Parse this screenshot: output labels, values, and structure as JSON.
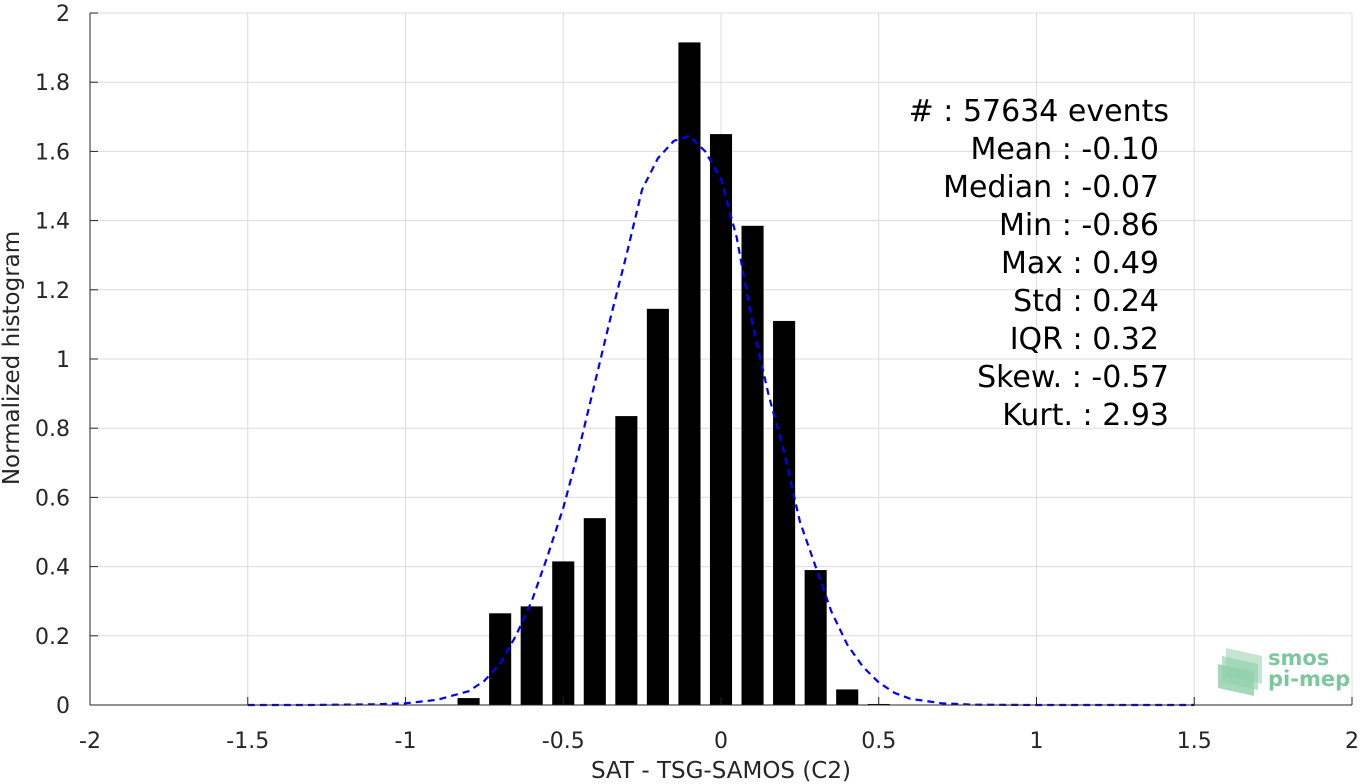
{
  "chart_data": {
    "type": "bar",
    "xlabel": "SAT - TSG-SAMOS (C2)",
    "ylabel": "Normalized histogram",
    "xlim": [
      -2,
      2
    ],
    "ylim": [
      0,
      2
    ],
    "x_ticks": [
      -2,
      -1.5,
      -1,
      -0.5,
      0,
      0.5,
      1,
      1.5,
      2
    ],
    "x_tick_labels": [
      "-2",
      "-1.5",
      "-1",
      "-0.5",
      "0",
      "0.5",
      "1",
      "1.5",
      "2"
    ],
    "y_ticks": [
      0,
      0.2,
      0.4,
      0.6,
      0.8,
      1,
      1.2,
      1.4,
      1.6,
      1.8,
      2
    ],
    "y_tick_labels": [
      "0",
      "0.2",
      "0.4",
      "0.6",
      "0.8",
      "1",
      "1.2",
      "1.4",
      "1.6",
      "1.8",
      "2"
    ],
    "grid": true,
    "bar_color": "#000000",
    "bar_width": 0.07,
    "bars": {
      "x": [
        -0.8,
        -0.7,
        -0.6,
        -0.5,
        -0.4,
        -0.3,
        -0.2,
        -0.1,
        0.0,
        0.1,
        0.2,
        0.3,
        0.4,
        0.5
      ],
      "values": [
        0.02,
        0.265,
        0.285,
        0.415,
        0.54,
        0.835,
        1.145,
        1.915,
        1.65,
        1.385,
        1.11,
        0.39,
        0.045,
        0.003
      ]
    },
    "fit_curve": {
      "style": "dashed",
      "color": "#0000ff",
      "x": [
        -1.5,
        -1.3,
        -1.1,
        -1.0,
        -0.9,
        -0.8,
        -0.75,
        -0.7,
        -0.65,
        -0.6,
        -0.55,
        -0.5,
        -0.45,
        -0.4,
        -0.35,
        -0.3,
        -0.25,
        -0.2,
        -0.15,
        -0.1,
        -0.05,
        0.0,
        0.05,
        0.1,
        0.15,
        0.2,
        0.25,
        0.3,
        0.35,
        0.4,
        0.45,
        0.5,
        0.55,
        0.6,
        0.7,
        0.8,
        1.0,
        1.5
      ],
      "y": [
        0.0,
        0.0,
        0.002,
        0.005,
        0.015,
        0.04,
        0.07,
        0.12,
        0.2,
        0.3,
        0.43,
        0.57,
        0.74,
        0.93,
        1.12,
        1.3,
        1.49,
        1.58,
        1.63,
        1.645,
        1.6,
        1.52,
        1.35,
        1.1,
        0.9,
        0.73,
        0.53,
        0.4,
        0.27,
        0.175,
        0.11,
        0.065,
        0.035,
        0.018,
        0.005,
        0.001,
        0.0,
        0.0
      ]
    },
    "stats_lines": [
      {
        "text": "#  : 57634 events",
        "align": "end"
      },
      {
        "text": "Mean : -0.10",
        "align": "end-inset"
      },
      {
        "text": "Median : -0.07",
        "align": "end-inset"
      },
      {
        "text": "Min : -0.86",
        "align": "end-inset"
      },
      {
        "text": "Max : 0.49",
        "align": "end-inset"
      },
      {
        "text": "Std : 0.24",
        "align": "end-inset"
      },
      {
        "text": "IQR : 0.32",
        "align": "end-inset"
      },
      {
        "text": "Skew. : -0.57",
        "align": "end"
      },
      {
        "text": "Kurt. : 2.93",
        "align": "end"
      }
    ]
  },
  "logo": {
    "line1": "smos",
    "line2": "pi-mep",
    "color": "#7dc79e"
  }
}
